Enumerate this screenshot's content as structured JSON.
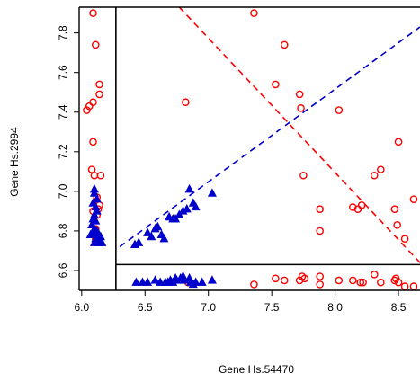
{
  "chart_data": {
    "type": "scatter",
    "title": "",
    "xlabel": "Gene Hs.54470",
    "ylabel": "Gene Hs.2994",
    "xlim": [
      5.98,
      8.67
    ],
    "ylim": [
      6.5,
      7.93
    ],
    "xticks": [
      "6.0",
      "6.5",
      "7.0",
      "7.5",
      "8.0",
      "8.5"
    ],
    "yticks": [
      "6.6",
      "6.8",
      "7.0",
      "7.2",
      "7.4",
      "7.6",
      "7.8"
    ],
    "grid": false,
    "legend": "none",
    "colors": {
      "red": "#ff0000",
      "blue": "#0000cd",
      "frame": "#000000"
    },
    "inner_box": {
      "x_from": 6.27,
      "y_from": 6.63
    },
    "lines": [
      {
        "style": "dashed",
        "color": "red",
        "from": [
          6.77,
          7.93
        ],
        "to": [
          8.67,
          6.64
        ]
      },
      {
        "style": "dashed",
        "color": "blue",
        "from": [
          6.3,
          6.72
        ],
        "to": [
          8.67,
          7.83
        ]
      }
    ],
    "series": [
      {
        "marker": "open-circle",
        "color": "red",
        "points": [
          [
            6.09,
            7.9
          ],
          [
            6.11,
            7.74
          ],
          [
            6.14,
            7.54
          ],
          [
            6.14,
            7.49
          ],
          [
            6.09,
            7.45
          ],
          [
            6.06,
            7.43
          ],
          [
            6.04,
            7.41
          ],
          [
            6.09,
            7.25
          ],
          [
            6.08,
            7.11
          ],
          [
            6.1,
            7.08
          ],
          [
            6.15,
            7.08
          ],
          [
            6.12,
            6.97
          ],
          [
            6.14,
            6.93
          ],
          [
            6.13,
            6.91
          ],
          [
            6.09,
            6.9
          ],
          [
            6.12,
            6.88
          ],
          [
            6.11,
            6.81
          ],
          [
            6.11,
            6.77
          ],
          [
            6.11,
            6.76
          ],
          [
            6.82,
            7.45
          ],
          [
            6.84,
            6.54
          ],
          [
            7.36,
            7.9
          ],
          [
            7.6,
            7.74
          ],
          [
            7.53,
            7.54
          ],
          [
            7.72,
            7.49
          ],
          [
            7.73,
            7.42
          ],
          [
            8.03,
            7.41
          ],
          [
            8.5,
            7.25
          ],
          [
            8.36,
            7.11
          ],
          [
            8.31,
            7.08
          ],
          [
            7.75,
            7.08
          ],
          [
            8.62,
            6.96
          ],
          [
            8.14,
            6.92
          ],
          [
            8.21,
            6.93
          ],
          [
            8.18,
            6.91
          ],
          [
            8.47,
            6.91
          ],
          [
            7.88,
            6.91
          ],
          [
            8.49,
            6.83
          ],
          [
            7.88,
            6.8
          ],
          [
            8.55,
            6.76
          ],
          [
            7.36,
            6.53
          ],
          [
            7.53,
            6.56
          ],
          [
            7.6,
            6.55
          ],
          [
            7.72,
            6.55
          ],
          [
            7.74,
            6.57
          ],
          [
            7.76,
            6.56
          ],
          [
            7.88,
            6.57
          ],
          [
            7.88,
            6.53
          ],
          [
            8.03,
            6.55
          ],
          [
            8.14,
            6.55
          ],
          [
            8.2,
            6.54
          ],
          [
            8.22,
            6.54
          ],
          [
            8.31,
            6.58
          ],
          [
            8.36,
            6.54
          ],
          [
            8.47,
            6.55
          ],
          [
            8.5,
            6.54
          ],
          [
            8.55,
            6.52
          ],
          [
            8.62,
            6.52
          ],
          [
            8.48,
            6.56
          ]
        ]
      },
      {
        "marker": "filled-triangle",
        "color": "blue",
        "points": [
          [
            6.1,
            7.01
          ],
          [
            6.1,
            6.99
          ],
          [
            6.12,
            6.96
          ],
          [
            6.09,
            6.94
          ],
          [
            6.11,
            6.92
          ],
          [
            6.12,
            6.9
          ],
          [
            6.1,
            6.88
          ],
          [
            6.09,
            6.86
          ],
          [
            6.11,
            6.85
          ],
          [
            6.08,
            6.83
          ],
          [
            6.1,
            6.81
          ],
          [
            6.12,
            6.8
          ],
          [
            6.09,
            6.79
          ],
          [
            6.13,
            6.78
          ],
          [
            6.15,
            6.77
          ],
          [
            6.07,
            6.78
          ],
          [
            6.11,
            6.76
          ],
          [
            6.1,
            6.74
          ],
          [
            6.13,
            6.74
          ],
          [
            6.14,
            6.75
          ],
          [
            6.16,
            6.74
          ],
          [
            6.42,
            6.73
          ],
          [
            6.45,
            6.74
          ],
          [
            6.52,
            6.79
          ],
          [
            6.55,
            6.77
          ],
          [
            6.58,
            6.81
          ],
          [
            6.6,
            6.82
          ],
          [
            6.63,
            6.78
          ],
          [
            6.65,
            6.76
          ],
          [
            6.69,
            6.87
          ],
          [
            6.72,
            6.86
          ],
          [
            6.74,
            6.86
          ],
          [
            6.77,
            6.88
          ],
          [
            6.8,
            6.9
          ],
          [
            6.83,
            6.91
          ],
          [
            6.85,
            7.01
          ],
          [
            6.88,
            6.94
          ],
          [
            6.9,
            6.92
          ],
          [
            7.03,
            6.99
          ],
          [
            6.43,
            6.54
          ],
          [
            6.48,
            6.54
          ],
          [
            6.52,
            6.54
          ],
          [
            6.58,
            6.55
          ],
          [
            6.62,
            6.54
          ],
          [
            6.66,
            6.54
          ],
          [
            6.68,
            6.54
          ],
          [
            6.7,
            6.55
          ],
          [
            6.72,
            6.54
          ],
          [
            6.74,
            6.56
          ],
          [
            6.75,
            6.55
          ],
          [
            6.78,
            6.56
          ],
          [
            6.8,
            6.57
          ],
          [
            6.81,
            6.55
          ],
          [
            6.85,
            6.56
          ],
          [
            6.86,
            6.54
          ],
          [
            6.88,
            6.53
          ],
          [
            6.9,
            6.54
          ],
          [
            7.03,
            6.55
          ],
          [
            6.95,
            6.54
          ]
        ]
      }
    ]
  }
}
